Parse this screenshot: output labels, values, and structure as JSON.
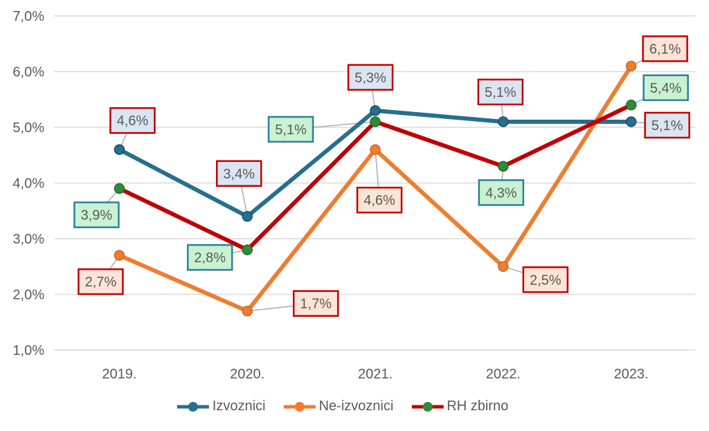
{
  "chart_data": {
    "type": "line",
    "title": "",
    "categories": [
      "2019.",
      "2020.",
      "2021.",
      "2022.",
      "2023."
    ],
    "y_axis": {
      "min": 1,
      "max": 7,
      "step": 1,
      "tick_labels": [
        "1,0%",
        "2,0%",
        "3,0%",
        "4,0%",
        "5,0%",
        "6,0%",
        "7,0%"
      ]
    },
    "grid": true,
    "legend_position": "bottom",
    "colors": {
      "text": "#595959",
      "grid": "#D9D9D9",
      "leader": "#A6A6A6",
      "background": "#FFFFFF"
    },
    "series": [
      {
        "name": "Izvoznici",
        "values": [
          4.6,
          3.4,
          5.3,
          5.1,
          5.1
        ],
        "point_labels": [
          "4,6%",
          "3,4%",
          "5,3%",
          "5,1%",
          "5,1%"
        ],
        "line_color": "#266F8E",
        "marker_color": "#266F8E",
        "marker_edge": "#174E66",
        "label_bg": "#DBE5F1",
        "label_border": "#C00000",
        "label_offsets": [
          [
            19,
            -42
          ],
          [
            -12,
            -62
          ],
          [
            -7,
            -48
          ],
          [
            -4,
            -43
          ],
          [
            52,
            5
          ]
        ]
      },
      {
        "name": "Ne-izvoznici",
        "values": [
          2.7,
          1.7,
          4.6,
          2.5,
          6.1
        ],
        "point_labels": [
          "2,7%",
          "1,7%",
          "4,6%",
          "2,5%",
          "6,1%"
        ],
        "line_color": "#ED7D31",
        "marker_color": "#ED7D31",
        "marker_edge": "#C96A26",
        "label_bg": "#FCE4D6",
        "label_border": "#C00000",
        "label_offsets": [
          [
            -27,
            38
          ],
          [
            99,
            -11
          ],
          [
            6,
            73
          ],
          [
            61,
            19
          ],
          [
            49,
            -25
          ]
        ]
      },
      {
        "name": "RH zbirno",
        "values": [
          3.9,
          2.8,
          5.1,
          4.3,
          5.4
        ],
        "point_labels": [
          "3,9%",
          "2,8%",
          "5,1%",
          "4,3%",
          "5,4%"
        ],
        "line_color": "#C00000",
        "marker_color": "#2E8B3A",
        "marker_edge": "#1D6B2B",
        "label_bg": "#C8F2D0",
        "label_border": "#2E7F9E",
        "label_offsets": [
          [
            -33,
            38
          ],
          [
            -54,
            11
          ],
          [
            -122,
            11
          ],
          [
            -3,
            38
          ],
          [
            50,
            -25
          ]
        ]
      }
    ]
  }
}
